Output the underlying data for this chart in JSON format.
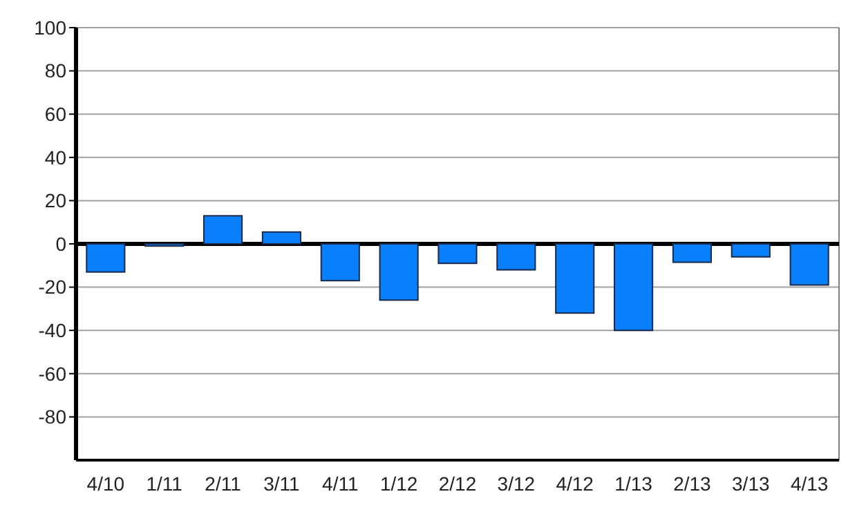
{
  "chart_data": {
    "type": "bar",
    "categories": [
      "4/10",
      "1/11",
      "2/11",
      "3/11",
      "4/11",
      "1/12",
      "2/12",
      "3/12",
      "4/12",
      "1/13",
      "2/13",
      "3/13",
      "4/13"
    ],
    "values": [
      -13,
      -1,
      13,
      5.5,
      -17,
      -26,
      -9,
      -12,
      -32,
      -40,
      -8.5,
      -6,
      -19
    ],
    "color": "#0a7ffc",
    "ylim": [
      -100,
      100
    ],
    "yticks": [
      -80,
      -60,
      -40,
      -20,
      0,
      20,
      40,
      60,
      80,
      100
    ],
    "grid": "y"
  }
}
